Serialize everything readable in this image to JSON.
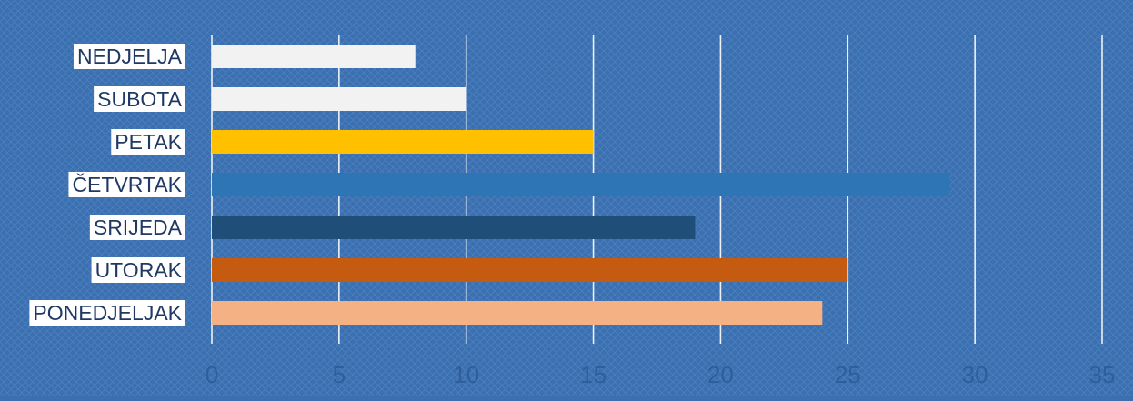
{
  "chart_data": {
    "type": "bar",
    "orientation": "horizontal",
    "title": "",
    "xlabel": "",
    "ylabel": "",
    "categories": [
      "PONEDJELJAK",
      "UTORAK",
      "SRIJEDA",
      "ČETVRTAK",
      "PETAK",
      "SUBOTA",
      "NEDJELJA"
    ],
    "values": [
      24,
      25,
      19,
      29,
      15,
      10,
      8
    ],
    "bar_colors": [
      "#F4B183",
      "#C55A11",
      "#1F4E79",
      "#2E75B6",
      "#FFC000",
      "#F2F2F2",
      "#F2F2F2"
    ],
    "xlim": [
      0,
      35
    ],
    "xticks": [
      0,
      5,
      10,
      15,
      20,
      25,
      30,
      35
    ],
    "grid": "vertical",
    "legend": "none",
    "background_color": "#3A6FB0",
    "label_box_color": "#FFFFFF",
    "label_text_color": "#1F3864",
    "tick_label_color": "#2E5F9A",
    "gridline_color": "#FFFFFF"
  }
}
